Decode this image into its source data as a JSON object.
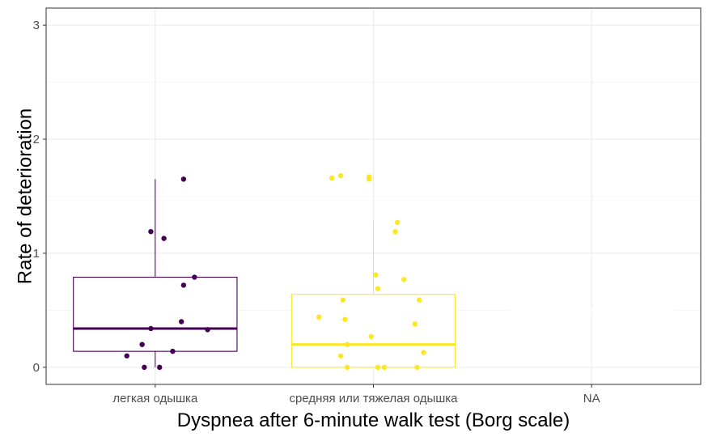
{
  "chart_data": {
    "type": "boxplot",
    "title": "",
    "xlabel": "Dyspnea after 6-minute walk test (Borg scale)",
    "ylabel": "Rate of deterioration",
    "ylim": [
      -0.15,
      3.15
    ],
    "y_ticks": [
      0,
      1,
      2,
      3
    ],
    "grid": true,
    "legend": "none",
    "categories": [
      "легкая одышка",
      "средняя или тяжелая одышка",
      "NA"
    ],
    "series": [
      {
        "category": "легкая одышка",
        "color": "#440154",
        "box": {
          "lower_whisker": 0,
          "q1": 0.14,
          "median": 0.34,
          "q3": 0.79,
          "upper_whisker": 1.65
        },
        "points": [
          {
            "jitter": 0.13,
            "y": 1.65
          },
          {
            "jitter": -0.02,
            "y": 1.19
          },
          {
            "jitter": 0.04,
            "y": 1.13
          },
          {
            "jitter": 0.18,
            "y": 0.79
          },
          {
            "jitter": 0.13,
            "y": 0.72
          },
          {
            "jitter": 0.12,
            "y": 0.4
          },
          {
            "jitter": -0.02,
            "y": 0.34
          },
          {
            "jitter": 0.24,
            "y": 0.33
          },
          {
            "jitter": -0.06,
            "y": 0.2
          },
          {
            "jitter": 0.08,
            "y": 0.14
          },
          {
            "jitter": -0.13,
            "y": 0.1
          },
          {
            "jitter": -0.05,
            "y": 0.0
          },
          {
            "jitter": 0.02,
            "y": 0.0
          }
        ]
      },
      {
        "category": "средняя или тяжелая одышка",
        "color": "#fde725",
        "box": {
          "lower_whisker": 0,
          "q1": 0.0,
          "median": 0.2,
          "q3": 0.64,
          "upper_whisker": 1.28
        },
        "points": [
          {
            "jitter": -0.19,
            "y": 1.66
          },
          {
            "jitter": -0.15,
            "y": 1.68
          },
          {
            "jitter": -0.02,
            "y": 1.67
          },
          {
            "jitter": -0.02,
            "y": 1.65
          },
          {
            "jitter": 0.11,
            "y": 1.27
          },
          {
            "jitter": 0.1,
            "y": 1.19
          },
          {
            "jitter": 0.01,
            "y": 0.81
          },
          {
            "jitter": 0.14,
            "y": 0.77
          },
          {
            "jitter": 0.02,
            "y": 0.69
          },
          {
            "jitter": -0.14,
            "y": 0.59
          },
          {
            "jitter": 0.21,
            "y": 0.59
          },
          {
            "jitter": -0.25,
            "y": 0.44
          },
          {
            "jitter": -0.13,
            "y": 0.42
          },
          {
            "jitter": 0.19,
            "y": 0.38
          },
          {
            "jitter": -0.01,
            "y": 0.27
          },
          {
            "jitter": -0.12,
            "y": 0.2
          },
          {
            "jitter": 0.23,
            "y": 0.13
          },
          {
            "jitter": -0.15,
            "y": 0.1
          },
          {
            "jitter": -0.12,
            "y": 0.0
          },
          {
            "jitter": 0.02,
            "y": 0.0
          },
          {
            "jitter": 0.05,
            "y": 0.0
          },
          {
            "jitter": 0.2,
            "y": 0.0
          }
        ]
      },
      {
        "category": "NA",
        "color": "#ffffff",
        "box": null,
        "points": []
      }
    ]
  }
}
